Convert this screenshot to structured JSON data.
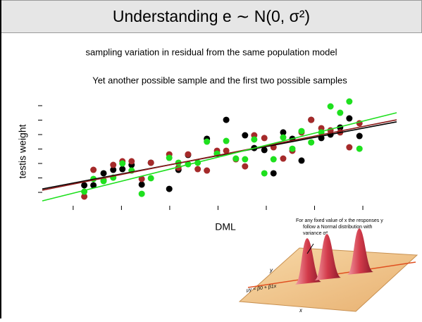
{
  "slide": {
    "title": "Understanding e ∼ N(0, σ²)",
    "subtitle": "sampling variation in residual from the same population model",
    "caption": "Yet another possible sample and the first two possible samples",
    "inset_note": [
      "For any fixed value of x the responses y",
      "follow a Normal distribution with",
      "variance σ²"
    ],
    "inset_y": "y",
    "inset_x": "x",
    "inset_line": "μy = β0 + β1x"
  },
  "chart_data": {
    "type": "scatter",
    "x_label": "DML",
    "y_label": "testis weight",
    "xlim": [
      0.36,
      7.7
    ],
    "ylim": [
      0.27,
      7.34
    ],
    "xticks": [
      1,
      2,
      3,
      4,
      5,
      6,
      7
    ],
    "yticks": [
      1,
      2,
      3,
      4,
      5,
      6,
      7
    ],
    "series": [
      {
        "color": "#000000",
        "x": [
          1.23,
          1.42,
          1.63,
          1.83,
          2.02,
          2.21,
          2.42,
          2.61,
          2.99,
          3.18,
          3.38,
          3.77,
          3.98,
          4.17,
          4.56,
          4.75,
          4.96,
          5.15,
          5.35,
          5.54,
          5.73,
          5.93,
          6.14,
          6.33,
          6.53,
          6.72,
          6.93
        ],
        "y": [
          1.49,
          1.49,
          2.32,
          2.56,
          2.61,
          2.9,
          1.54,
          3.05,
          1.24,
          2.56,
          3.59,
          4.71,
          3.68,
          6.02,
          4.95,
          4.07,
          3.93,
          2.32,
          5.15,
          4.71,
          3.2,
          6.02,
          4.76,
          5.0,
          5.49,
          6.12,
          4.9
        ]
      },
      {
        "color": "#a52a2a",
        "x": [
          1.23,
          1.42,
          1.63,
          1.83,
          2.02,
          2.21,
          2.42,
          2.61,
          2.99,
          3.18,
          3.38,
          3.58,
          3.77,
          3.98,
          4.17,
          4.37,
          4.56,
          4.75,
          4.96,
          5.15,
          5.35,
          5.54,
          5.73,
          5.93,
          6.14,
          6.33,
          6.53,
          6.72,
          6.93
        ],
        "y": [
          0.71,
          2.56,
          1.83,
          2.9,
          3.15,
          3.15,
          1.93,
          3.05,
          3.63,
          2.71,
          3.63,
          2.61,
          2.51,
          3.88,
          3.88,
          3.29,
          2.8,
          4.95,
          4.76,
          4.12,
          3.34,
          3.88,
          5.15,
          6.02,
          5.44,
          5.29,
          5.15,
          4.12,
          5.78
        ]
      },
      {
        "color": "#1ee01e",
        "x": [
          1.23,
          1.42,
          1.63,
          1.83,
          2.02,
          2.21,
          2.42,
          2.61,
          2.99,
          3.18,
          3.38,
          3.58,
          3.77,
          3.98,
          4.17,
          4.37,
          4.56,
          4.75,
          4.96,
          5.15,
          5.35,
          5.54,
          5.73,
          5.93,
          6.14,
          6.33,
          6.53,
          6.72,
          6.93
        ],
        "y": [
          1.05,
          1.93,
          1.78,
          2.02,
          3.0,
          2.51,
          0.9,
          1.98,
          3.39,
          3.05,
          2.95,
          3.05,
          4.51,
          3.68,
          4.56,
          3.34,
          3.29,
          4.66,
          2.32,
          3.29,
          4.8,
          4.02,
          5.24,
          4.46,
          5.15,
          6.95,
          6.51,
          7.29,
          4.02
        ]
      }
    ],
    "fit_lines": [
      {
        "color": "#000000",
        "x": [
          0.36,
          7.7
        ],
        "y": [
          1.24,
          5.88
        ]
      },
      {
        "color": "#8b1a1a",
        "x": [
          0.36,
          7.7
        ],
        "y": [
          1.15,
          6.02
        ]
      },
      {
        "color": "#1ee01e",
        "x": [
          0.36,
          7.7
        ],
        "y": [
          0.41,
          6.51
        ]
      }
    ]
  }
}
